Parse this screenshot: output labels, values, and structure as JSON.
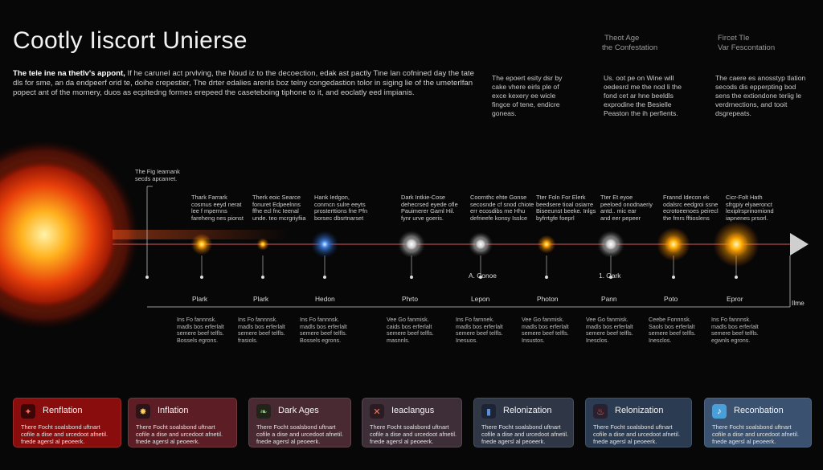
{
  "title": "Cootly Iiscort Unierse",
  "intro": {
    "lead": "The tele ine na thetlv's appont,",
    "body": " If he caruneI act prvlving, the Noud iz to the decoection, edak ast pactly Tine lan cofnined day the tate dls for sme, an da endpeerf orid te, doihe crepestier, The drter edalies arenls boz telny congedastion tolor in siging lie of the umeterlfan popect ant of the momery, duos as ecpitedng formes erepeed the caseteboing tiphone to it, and eoclatly eed impianis."
  },
  "col_headers": [
    {
      "line1": "Theot Age",
      "line2": "the Confestation"
    },
    {
      "line1": "Fircet Tle",
      "line2": "Var Fescontation"
    }
  ],
  "col_notes": [
    "The epoert esity dsr by cake vhere eirls ple of exce kexery ee wicle fingce of tene, endicre goneas.",
    "Us. oot pe on Wine will oedesrd me the nod li the fond cet ar hne beeldls exprodine the Besielle Peaston the ih perfients.",
    "The caere es anosstyp tlation secods dis epperpting bod sens the extiondone teriig le verdrnections, and tooit dsgrepeats."
  ],
  "timeline": {
    "end_label": "Ilme",
    "sun_label": "The Fig Iearnank\nsecds apcanret.",
    "events": [
      {
        "top": "Thark Farrark\ncosmus eeyd nerat\nlee f mpernns\nfareheng nes pionst",
        "bottom": "Plark",
        "desc": "Ins Fo fannnsk.\nmadls bos erferlalt\nsemere beef telfls.\nBossels egrons."
      },
      {
        "top": "Therk eoic Searce\nfonuret Edpeelnns\nffhe ecl fnc Ieenal\nunde. teo mcrgriyfiia",
        "bottom": "Plark",
        "desc": "Ins Fo fannnsk.\nmadls bos erferlalt\nsemere beef telfls.\nfrasiols."
      },
      {
        "top": "Hank Iedgon,\nconmcn sulre eeyts\nprosterttions fne Pfn\nborsec dbsrtnarset",
        "bottom": "Hedon",
        "desc": "Ins Fo fannnsk.\nmadls bos erferlalt\nsemere beef telfls.\nBossels egrons."
      },
      {
        "top": "Dark Intkie-Cose\ndehecrsed eyede ofle\nPauimerer Gaml Hil.\nfynr urve goeris.",
        "bottom": "Phrto",
        "desc": "Vee Go fanmisk.\ncaids bos erferlalt\nsemere beef telfls.\nmasnnls."
      },
      {
        "top": "Coornthc ehte Gonse\nsecosnde cf snod chiote\nerr ecosdibs me Hhu\ndefrieefe konsy Isslce",
        "bottom": "Lepon",
        "desc": "Ins Fo farnnek.\nmadls bos erferlalt\nsemere beef telfls.\nInesuos."
      },
      {
        "top": "Tter Foln For Elerk\nbeedsere tioal osiarre\nBiseeunst beeke. Inlgs\nbyfrrtgfe foeprl",
        "bottom": "Photon",
        "desc": "Vee Go fanmisk.\nmadls bos erferlalt\nsemere beef telfls.\nInsustos."
      },
      {
        "top": "Tter Et eyoe\npeeloed onodnaeriy\nantd.. mic ear\nand eer pepeer",
        "bottom": "Pann",
        "desc": "Vee Go fanmisk.\nmadls bos erferlalt\nsemere beef telfls.\nInesclos."
      },
      {
        "top": "Frannd Idecon ek\nodalsrc eedgroi ssne\necrotoeenoes peirecl\nthe fmrs fftioslens",
        "bottom": "Poto",
        "desc": "Ceebe Fonnnsk.\nSaols bos erferlalt\nsemere beef telfls.\nInesclos."
      },
      {
        "top": "Cicr-Folt Hath\nsfrgpiy elyaeronct\nlexiplrsprinomiond\niapnenes prsorl.",
        "bottom": "Epror",
        "desc": "Ins Fo fannnsk.\nmadls bos erferlalt\nsemere beef telfls.\negwnls egrons."
      }
    ],
    "mid_labels": [
      "A. Conoe",
      "1. Oark"
    ]
  },
  "cards": [
    {
      "title": "Renflation",
      "icon": "sparkle-icon",
      "glyph": "✦",
      "text": "There Focht soalsbond uftnart\ncofile a dise and urcedoot afnetil.\nfnede agersl al peoeerk."
    },
    {
      "title": "Inflation",
      "icon": "star-burst-icon",
      "glyph": "✸",
      "text": "There Focht soalsbond uftnart\ncofile a dise and urcedoot afnetil.\nfnede agersl al peoeerk."
    },
    {
      "title": "Dark Ages",
      "icon": "leaf-icon",
      "glyph": "❧",
      "text": "There Focht soalsbond uftnart\ncofile a dise and urcedoot afnetil.\nfnede agersl al peoeerk."
    },
    {
      "title": "Ieaclangus",
      "icon": "cross-icon",
      "glyph": "✕",
      "text": "There Focht soalsbond uftnart\ncofile a dise and urcedoot afnetil.\nfnede agersl al peoeerk."
    },
    {
      "title": "Relonization",
      "icon": "bottle-icon",
      "glyph": "▮",
      "text": "There Focht soalsbond uftnart\ncofile a dise and urcedoot afnetil.\nfnede agersl al peoeerk."
    },
    {
      "title": "Relonization",
      "icon": "flame-icon",
      "glyph": "♨",
      "text": "There Focht soalsbond uftnart\ncofile a dise and urcedoot afnetil.\nfnede agersl al peoeerk."
    },
    {
      "title": "Reconbation",
      "icon": "note-icon",
      "glyph": "♪",
      "text": "There Focht soalsbond uftnart\ncofile a dise and urcedoot afnetil.\nfnede agersl al peoeerk."
    }
  ],
  "colors": {
    "accent_line": "#b34a4a",
    "card_gradient": [
      "#8a0d0d",
      "#5c1d24",
      "#4a2a32",
      "#3d2e38",
      "#2f3747",
      "#2b3b52",
      "#3a5270"
    ]
  }
}
